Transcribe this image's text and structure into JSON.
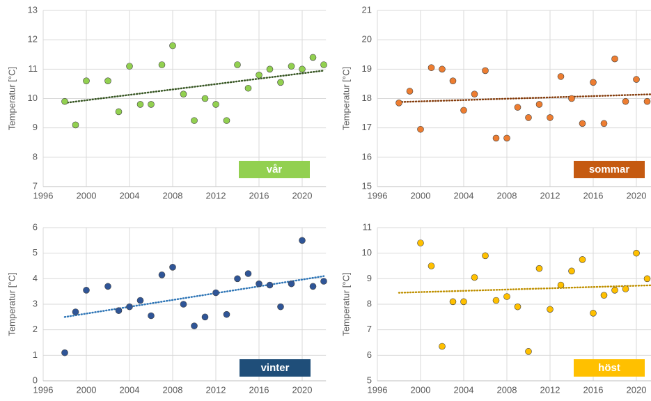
{
  "chart_data": [
    {
      "type": "scatter",
      "y_label": "Temperatur [°C]",
      "label": "vår",
      "label_color": "#92d050",
      "color": "#92d050",
      "trend_color": "#375623",
      "x": [
        1998,
        1999,
        2000,
        2002,
        2003,
        2004,
        2005,
        2006,
        2007,
        2008,
        2009,
        2010,
        2011,
        2012,
        2013,
        2014,
        2015,
        2016,
        2017,
        2018,
        2019,
        2020,
        2021,
        2022
      ],
      "values": [
        9.9,
        9.1,
        10.6,
        10.6,
        9.55,
        11.1,
        9.8,
        9.8,
        11.15,
        11.8,
        10.15,
        9.25,
        10.0,
        9.8,
        9.25,
        11.15,
        10.35,
        10.8,
        11.0,
        10.55,
        11.1,
        11.0,
        11.4,
        11.15
      ],
      "trend": {
        "x": [
          1998,
          2022
        ],
        "values": [
          9.85,
          10.95
        ]
      },
      "xlim": [
        1996,
        2022.2
      ],
      "xticks": [
        1996,
        2000,
        2004,
        2008,
        2012,
        2016,
        2020
      ],
      "ylim": [
        7,
        13
      ],
      "yticks": [
        7,
        8,
        9,
        10,
        11,
        12,
        13
      ]
    },
    {
      "type": "scatter",
      "y_label": "Temperatur [°C]",
      "label": "sommar",
      "label_color": "#c55a11",
      "color": "#ed7d31",
      "trend_color": "#843c0c",
      "x": [
        1998,
        1999,
        2000,
        2001,
        2002,
        2003,
        2004,
        2005,
        2006,
        2007,
        2008,
        2009,
        2010,
        2011,
        2012,
        2013,
        2014,
        2015,
        2016,
        2017,
        2018,
        2019,
        2020,
        2021
      ],
      "values": [
        17.85,
        18.25,
        16.95,
        19.05,
        19.0,
        18.6,
        17.6,
        18.15,
        18.95,
        16.65,
        16.65,
        17.7,
        17.35,
        17.8,
        17.35,
        18.75,
        18.0,
        17.15,
        18.55,
        17.15,
        19.35,
        17.9,
        18.65,
        17.9
      ],
      "trend": {
        "x": [
          1998,
          2022
        ],
        "values": [
          17.88,
          18.15
        ]
      },
      "xlim": [
        1996,
        2022.2
      ],
      "xticks": [
        1996,
        2000,
        2004,
        2008,
        2012,
        2016,
        2020
      ],
      "ylim": [
        15,
        21
      ],
      "yticks": [
        15,
        16,
        17,
        18,
        19,
        20,
        21
      ]
    },
    {
      "type": "scatter",
      "y_label": "Temperatur [°C]",
      "label": "vinter",
      "label_color": "#1f4e79",
      "color": "#2f5597",
      "trend_color": "#2e75b6",
      "x": [
        1998,
        1999,
        2000,
        2002,
        2003,
        2004,
        2005,
        2006,
        2007,
        2008,
        2009,
        2010,
        2011,
        2012,
        2013,
        2014,
        2015,
        2016,
        2017,
        2018,
        2019,
        2020,
        2021,
        2022
      ],
      "values": [
        1.1,
        2.7,
        3.55,
        3.7,
        2.75,
        2.9,
        3.15,
        2.55,
        4.15,
        4.45,
        3.0,
        2.15,
        2.5,
        3.45,
        2.6,
        4.0,
        4.2,
        3.8,
        3.75,
        2.9,
        3.8,
        5.5,
        3.7,
        3.9
      ],
      "trend": {
        "x": [
          1998,
          2022
        ],
        "values": [
          2.5,
          4.1
        ]
      },
      "xlim": [
        1996,
        2022.2
      ],
      "xticks": [
        1996,
        2000,
        2004,
        2008,
        2012,
        2016,
        2020
      ],
      "ylim": [
        0,
        6
      ],
      "yticks": [
        0,
        1,
        2,
        3,
        4,
        5,
        6
      ]
    },
    {
      "type": "scatter",
      "y_label": "Temperatur [°C]",
      "label": "höst",
      "label_color": "#ffc000",
      "color": "#ffc000",
      "trend_color": "#bf9000",
      "x": [
        2000,
        2001,
        2002,
        2003,
        2004,
        2005,
        2006,
        2007,
        2008,
        2009,
        2010,
        2011,
        2012,
        2013,
        2014,
        2015,
        2016,
        2017,
        2018,
        2019,
        2020,
        2021
      ],
      "values": [
        10.4,
        9.5,
        6.35,
        8.1,
        8.1,
        9.05,
        9.9,
        8.15,
        8.3,
        7.9,
        6.15,
        9.4,
        7.8,
        8.75,
        9.3,
        9.75,
        7.65,
        8.35,
        8.55,
        8.6,
        10.0,
        9.0
      ],
      "trend": {
        "x": [
          1998,
          2022
        ],
        "values": [
          8.45,
          8.75
        ]
      },
      "xlim": [
        1996,
        2022.2
      ],
      "xticks": [
        1996,
        2000,
        2004,
        2008,
        2012,
        2016,
        2020
      ],
      "ylim": [
        5,
        11
      ],
      "yticks": [
        5,
        6,
        7,
        8,
        9,
        10,
        11
      ]
    }
  ]
}
